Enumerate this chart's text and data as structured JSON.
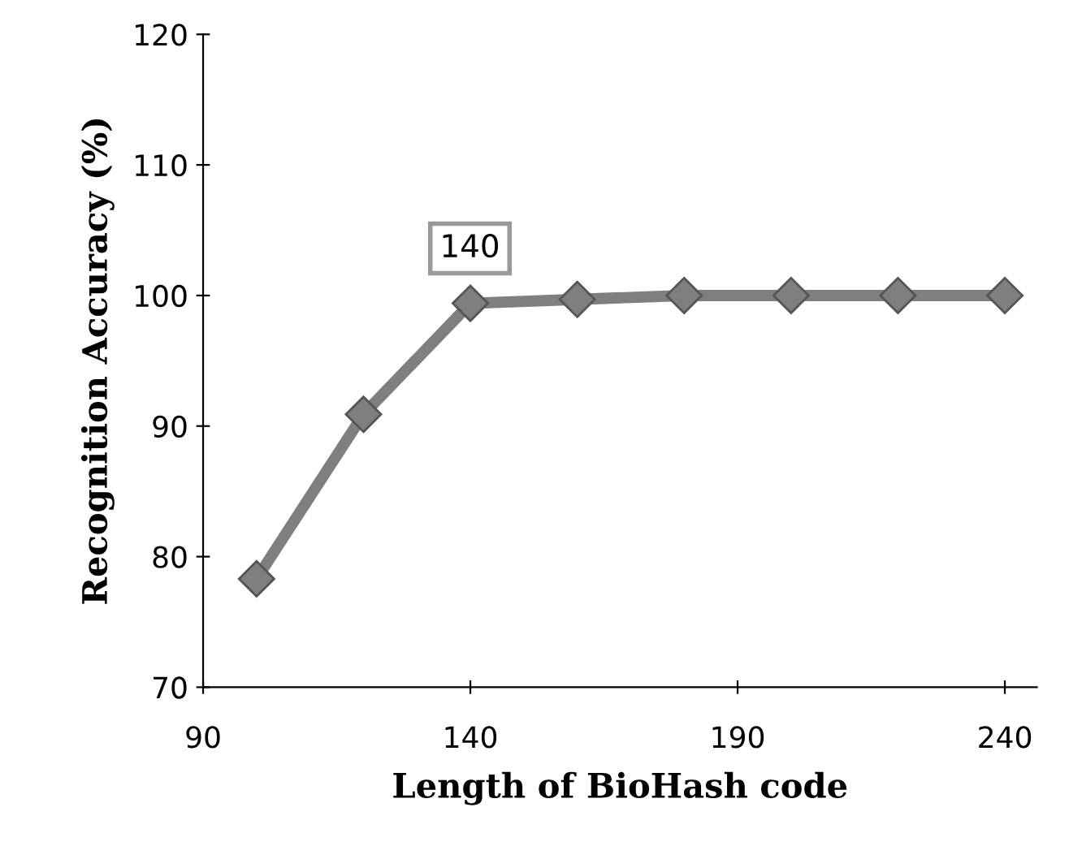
{
  "chart_data": {
    "type": "line",
    "xlabel": "Length of BioHash code",
    "ylabel": "Recognition Accuracy (%)",
    "x": [
      100,
      120,
      140,
      160,
      180,
      200,
      220,
      240
    ],
    "series": [
      {
        "color": "#7f7f7f",
        "values": [
          78.3,
          90.9,
          99.4,
          99.7,
          100,
          100,
          100,
          100
        ]
      }
    ],
    "xlim": [
      90,
      246
    ],
    "xticks": [
      90,
      140,
      190,
      240
    ],
    "ylim": [
      70,
      120
    ],
    "yticks": [
      70,
      80,
      90,
      100,
      110,
      120
    ],
    "marker": "diamond",
    "line_style": "solid",
    "grid": false,
    "legend": false,
    "annotations": [
      "140"
    ]
  }
}
